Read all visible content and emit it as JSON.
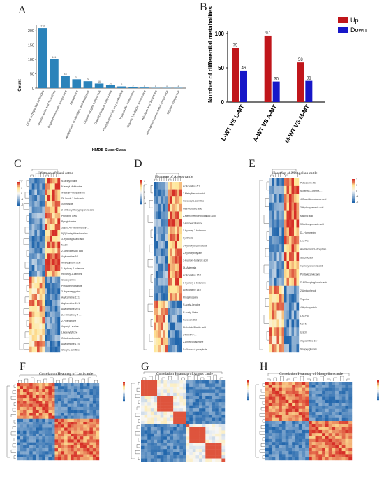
{
  "panels": {
    "A": "A",
    "B": "B",
    "C": "C",
    "D": "D",
    "E": "E",
    "F": "F",
    "G": "G",
    "H": "H"
  },
  "chart_data": [
    {
      "panel": "A",
      "type": "bar",
      "xlabel": "HMDB SuperClass",
      "ylabel": "Count",
      "ylim": [
        0,
        220
      ],
      "yticks": [
        0,
        50,
        100,
        150,
        200
      ],
      "color": "#2b83ba",
      "categories": [
        "Lipids and lipid-like molecules",
        "Organic acids and derivatives",
        "Organoheterocyclic compounds",
        "Benzenoids",
        "Nucleosides, nucleotides, and analogues",
        "Organic oxygen compounds",
        "Organic nitrogen compounds",
        "Phenylpropanoids and polyketides",
        "Organosulfur compounds",
        "Organic 1,3-dipolar compounds",
        "Alkaloids and derivatives",
        "Homogeneous non-metal compounds",
        "Organic compounds"
      ],
      "values": [
        210,
        101,
        43,
        31,
        24,
        16,
        10,
        6,
        3,
        2,
        1,
        1,
        1
      ]
    },
    {
      "panel": "B",
      "type": "bar",
      "ylabel": "Number of differential metabolites",
      "ylim": [
        0,
        100
      ],
      "yticks": [
        0,
        50,
        100
      ],
      "categories": [
        "L-WT VS L-MT",
        "A-WT VS A-MT",
        "M-WT VS M-MT"
      ],
      "series": [
        {
          "name": "Up",
          "color": "#c0161b",
          "values": [
            79,
            97,
            58
          ]
        },
        {
          "name": "Down",
          "color": "#1717c8",
          "values": [
            46,
            30,
            31
          ]
        }
      ],
      "legend": "top-right"
    }
  ],
  "heatmaps": {
    "C": {
      "title": "Heatmap of Luxi cattle",
      "rows": [
        "N-lactoyl-Valine",
        "N-acetyl-Methionine",
        "N-acetyl-Phenylalanine",
        "DL-Indole-3-lactic acid",
        "Xanthosine",
        "2-Methoxyethoxypropanoic acid",
        "Ptomaine OXA",
        "Pyroglutamine",
        "3alpha,4,7-Tetrahydroxy-…",
        "9(S)-Methylthioadenosine",
        "3-Hydroxyglutaric acid",
        "NADH",
        "2-Methylbenzoic acid",
        "Acylcarnitine 6:1",
        "Methylglutaric acid",
        "1-Hydroxy-2-butanone",
        "Hexanoyl-L-carnitine",
        "Glycocyamine",
        "Pyrocatechol sulfate",
        "3-Hepteneyglycine",
        "Acylcarnitine 11:1",
        "Acylcarnitine 13:1",
        "Acylcarnitine 20:4",
        "2,5-Dimethoxy-4-…",
        "2-Piperidinone",
        "Aspartyl-Leucine",
        "Linoleoylglycine",
        "Octadecadienoate",
        "Acylcarnitine 17:0",
        "Oleoyl-L-carnitine"
      ],
      "legend_ticks": [
        "2",
        "1",
        "0",
        "-1",
        "-2"
      ]
    },
    "D": {
      "title": "Heatmap of Angus cattle",
      "rows": [
        "Acylcarnitine 6:1",
        "2-Methylbenzoic acid",
        "Hexanoyl-L-carnitine",
        "Methylglutaric acid",
        "2-Methoxyethoxypropanoic acid",
        "2-Aminoacrylamine",
        "1-Hydroxy-2-butanone",
        "Synthesis",
        "3-Hydroxydecanedioate",
        "2-Hydroxybutyrate",
        "3-Hydroxy-butanoic acid",
        "DL-Artemisia",
        "Acylcarnitine 16:2",
        "1-Hydroxy-2-butanone",
        "Acylcarnitine 14:2",
        "Phosphoserine",
        "N-acetyl-Leucine",
        "N-acetyl-Valine",
        "Pubescin 293",
        "DL-Indole-3-lactic acid",
        "2-Amino-9-…",
        "2-Dihydroxyacetone",
        "D-Glucose 6-phosphate"
      ],
      "legend_ticks": [
        "3",
        "2",
        "1",
        "0",
        "-1"
      ]
    },
    "E": {
      "title": "Heatmap of Mongolian cattle",
      "rows": [
        "Pubesporin 293",
        "N-Benzyl-2-methyl-…",
        "4-Guanidinobutanoic acid",
        "3-Hydroxybenzoic acid",
        "Malonic acid",
        "3-Methoxybenzoic acid",
        "DL-Homoserine",
        "Leu-Pro",
        "Ala-Glycerol-3-phosphate",
        "Succinic acid",
        "Hydroxyhexanoic acid",
        "Pentadecanoic acid",
        "D-4-Phosphogluconic acid",
        "2-Aminophenol",
        "Thymine",
        "4-Hydroxyindole",
        "Leu-Pro",
        "Met-Ile",
        "Uracil",
        "Acylcarnitine 16:4",
        "Sinapoylglucose"
      ],
      "legend_ticks": [
        "2",
        "1",
        "0",
        "-1",
        "-2"
      ]
    },
    "F": {
      "title": "Correlation Heatmap of Luxi cattle"
    },
    "G": {
      "title": "Correlation Heatmap of Angus cattle"
    },
    "H": {
      "title": "Correlation Heatmap of Mongolian cattle"
    }
  }
}
